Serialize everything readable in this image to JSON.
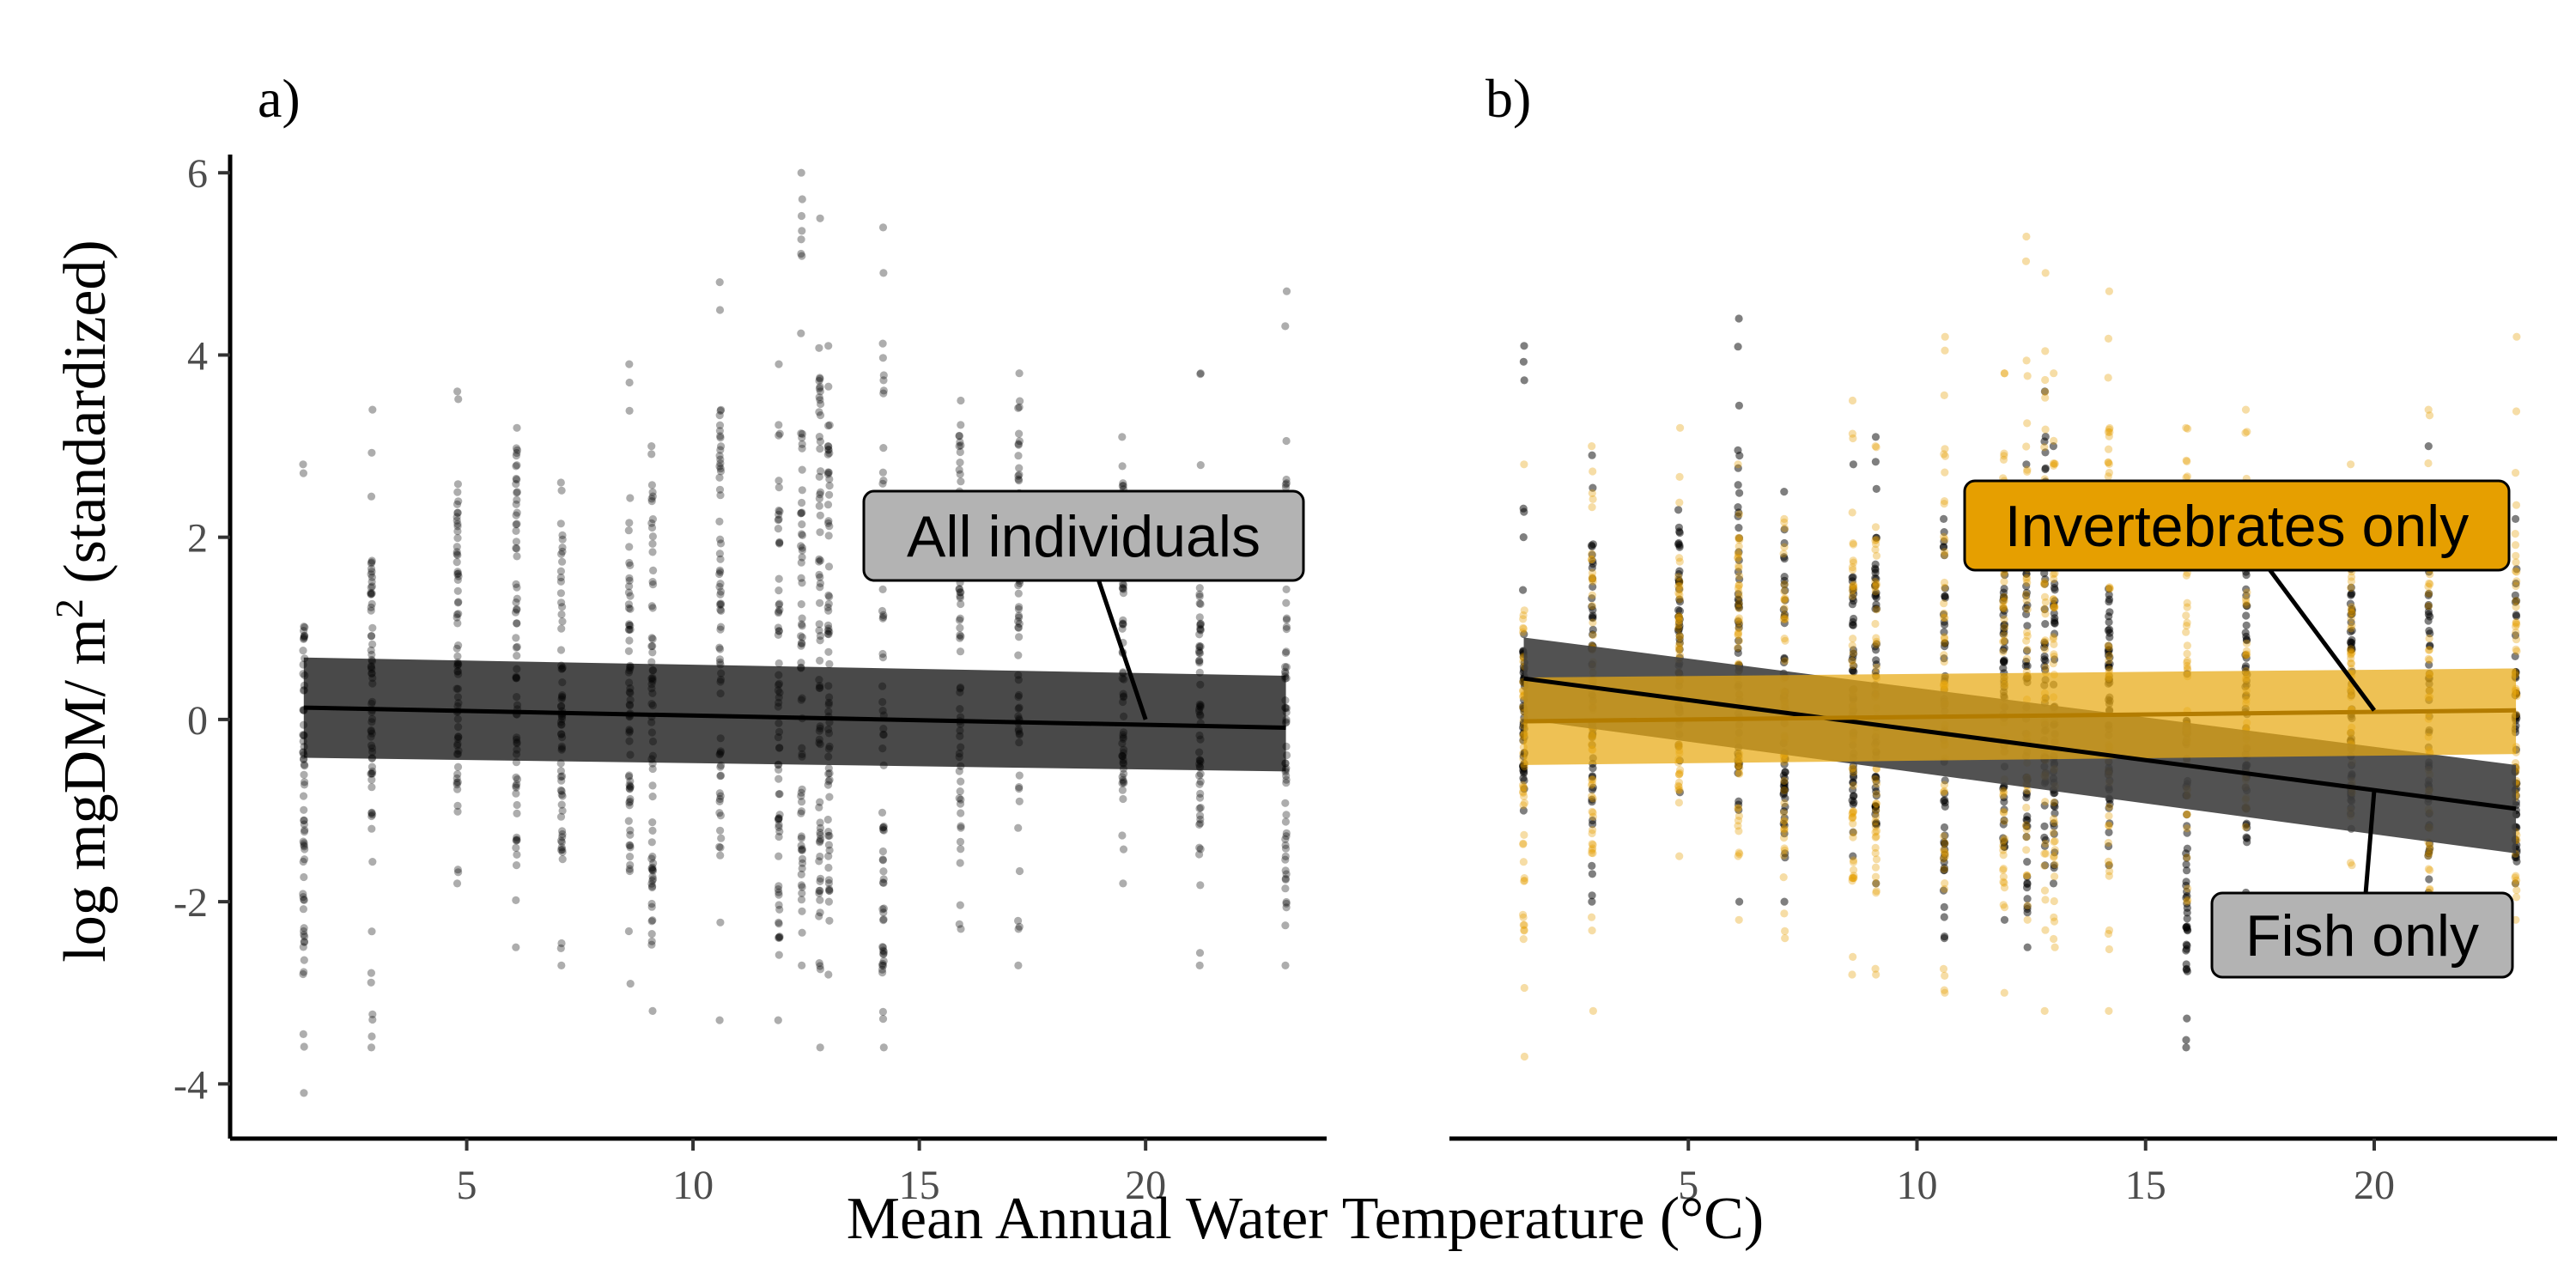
{
  "colors": {
    "fish": "#000000",
    "invertebrates": "#E69F00",
    "band_all": "#3f3f3f",
    "band_fish": "#3f3f3f",
    "band_invert": "#E8A912",
    "label_gray": "#b3b3b3",
    "label_orange": "#E69F00"
  },
  "figure": {
    "xlabel": "Mean Annual Water Temperature (°C)",
    "ylabel_main": "log mgDM/ m",
    "ylabel_sup": "2",
    "ylabel_tail": " (standardized)"
  },
  "chart_data": [
    {
      "panel": "a)",
      "type": "scatter",
      "xlabel": "Mean Annual Water Temperature (°C)",
      "ylabel": "log mgDM/ m2 (standardized)",
      "xlim": [
        0,
        24
      ],
      "ylim": [
        -4.6,
        6.2
      ],
      "xticks": [
        5,
        10,
        15,
        20
      ],
      "yticks": [
        -4,
        -2,
        0,
        2,
        4,
        6
      ],
      "grid": false,
      "sites_x": [
        1.4,
        2.9,
        4.8,
        6.1,
        7.1,
        8.6,
        9.1,
        10.6,
        11.9,
        12.4,
        12.8,
        13.0,
        14.2,
        15.9,
        17.2,
        19.5,
        21.2,
        23.1
      ],
      "site_ranges": [
        {
          "x": 1.4,
          "min": -4.1,
          "max": 2.8,
          "dense": [
            -2.8,
            1.2
          ]
        },
        {
          "x": 2.9,
          "min": -3.6,
          "max": 3.4,
          "dense": [
            -1.2,
            1.9
          ]
        },
        {
          "x": 4.8,
          "min": -1.8,
          "max": 3.6,
          "dense": [
            -0.8,
            2.3
          ]
        },
        {
          "x": 6.1,
          "min": -2.5,
          "max": 3.2,
          "dense": [
            -1.6,
            3.0
          ]
        },
        {
          "x": 7.1,
          "min": -2.7,
          "max": 2.6,
          "dense": [
            -1.5,
            2.2
          ]
        },
        {
          "x": 8.6,
          "min": -2.9,
          "max": 3.9,
          "dense": [
            -1.8,
            2.0
          ]
        },
        {
          "x": 9.1,
          "min": -3.2,
          "max": 3.0,
          "dense": [
            -2.5,
            2.5
          ]
        },
        {
          "x": 10.6,
          "min": -3.3,
          "max": 4.8,
          "dense": [
            -1.5,
            3.4
          ]
        },
        {
          "x": 11.9,
          "min": -3.3,
          "max": 3.9,
          "dense": [
            -2.5,
            3.3
          ]
        },
        {
          "x": 12.4,
          "min": -2.7,
          "max": 6.0,
          "dense": [
            -2.3,
            3.3
          ]
        },
        {
          "x": 12.8,
          "min": -3.6,
          "max": 5.5,
          "dense": [
            -2.2,
            4.1
          ]
        },
        {
          "x": 13.0,
          "min": -2.8,
          "max": 4.1,
          "dense": [
            -2.0,
            3.6
          ]
        },
        {
          "x": 14.2,
          "min": -3.6,
          "max": 5.4,
          "dense": [
            -2.8,
            4.2
          ]
        },
        {
          "x": 15.9,
          "min": -2.3,
          "max": 3.5,
          "dense": [
            -1.6,
            3.4
          ]
        },
        {
          "x": 17.2,
          "min": -2.7,
          "max": 3.8,
          "dense": [
            -1.0,
            3.6
          ]
        },
        {
          "x": 19.5,
          "min": -1.8,
          "max": 3.1,
          "dense": [
            -1.0,
            2.6
          ]
        },
        {
          "x": 21.2,
          "min": -2.7,
          "max": 3.8,
          "dense": [
            -2.0,
            2.1
          ]
        },
        {
          "x": 23.1,
          "min": -2.7,
          "max": 4.7,
          "dense": [
            -2.3,
            2.8
          ]
        }
      ],
      "series": [
        {
          "name": "All individuals",
          "color": "#000000",
          "fit_x": [
            1.4,
            23.1
          ],
          "fit_y": [
            0.13,
            -0.09
          ],
          "ci_lower": [
            -0.42,
            -0.57
          ],
          "ci_upper": [
            0.68,
            0.48
          ]
        }
      ],
      "annotations": [
        {
          "text": "All individuals",
          "style": "gray",
          "points_to": {
            "x": 20.0,
            "y": 0.0
          }
        }
      ]
    },
    {
      "panel": "b)",
      "type": "scatter",
      "xlabel": "Mean Annual Water Temperature (°C)",
      "ylabel": "log mgDM/ m2 (standardized)",
      "xlim": [
        0,
        24
      ],
      "ylim": [
        -4.6,
        6.2
      ],
      "xticks": [
        5,
        10,
        15,
        20
      ],
      "yticks": [
        -4,
        -2,
        0,
        2,
        4,
        6
      ],
      "grid": false,
      "sites_x": [
        1.4,
        2.9,
        4.8,
        6.1,
        7.1,
        8.6,
        9.1,
        10.6,
        11.9,
        12.4,
        12.8,
        13.0,
        14.2,
        15.9,
        17.2,
        19.5,
        21.2,
        23.1
      ],
      "site_ranges_fish": [
        {
          "x": 1.4,
          "min": -1.0,
          "max": 4.1,
          "dense": [
            -0.6,
            0.8
          ]
        },
        {
          "x": 2.9,
          "min": -2.0,
          "max": 2.9,
          "dense": [
            -1.2,
            2.0
          ]
        },
        {
          "x": 4.8,
          "min": -0.8,
          "max": 2.3,
          "dense": [
            -0.5,
            2.0
          ]
        },
        {
          "x": 6.1,
          "min": -2.0,
          "max": 4.4,
          "dense": [
            -1.0,
            3.0
          ]
        },
        {
          "x": 7.1,
          "min": -2.0,
          "max": 2.5,
          "dense": [
            -1.8,
            1.8
          ]
        },
        {
          "x": 8.6,
          "min": -1.5,
          "max": 2.8,
          "dense": [
            -1.0,
            1.6
          ]
        },
        {
          "x": 9.1,
          "min": -1.8,
          "max": 3.1,
          "dense": [
            -1.2,
            2.0
          ]
        },
        {
          "x": 10.6,
          "min": -2.4,
          "max": 2.2,
          "dense": [
            -1.9,
            2.1
          ]
        },
        {
          "x": 11.9,
          "min": -2.2,
          "max": 2.5,
          "dense": [
            -1.5,
            2.0
          ]
        },
        {
          "x": 12.4,
          "min": -2.5,
          "max": 2.8,
          "dense": [
            -2.2,
            2.3
          ]
        },
        {
          "x": 12.8,
          "min": -1.6,
          "max": 3.6,
          "dense": [
            -1.4,
            3.1
          ]
        },
        {
          "x": 13.0,
          "min": -1.8,
          "max": 3.0,
          "dense": [
            -1.4,
            2.6
          ]
        },
        {
          "x": 14.2,
          "min": -1.6,
          "max": 2.0,
          "dense": [
            -1.0,
            1.5
          ]
        },
        {
          "x": 15.9,
          "min": -3.6,
          "max": 0.5,
          "dense": [
            -2.8,
            0.2
          ]
        },
        {
          "x": 17.2,
          "min": -1.9,
          "max": 2.4,
          "dense": [
            -1.5,
            2.0
          ]
        },
        {
          "x": 19.5,
          "min": -1.2,
          "max": 1.8,
          "dense": [
            -1.0,
            1.5
          ]
        },
        {
          "x": 21.2,
          "min": -1.9,
          "max": 3.0,
          "dense": [
            -1.5,
            2.1
          ]
        },
        {
          "x": 23.1,
          "min": -1.8,
          "max": 2.2,
          "dense": [
            -1.6,
            1.5
          ]
        }
      ],
      "site_ranges_invert": [
        {
          "x": 1.4,
          "min": -3.7,
          "max": 2.8,
          "dense": [
            -2.8,
            1.2
          ]
        },
        {
          "x": 2.9,
          "min": -3.2,
          "max": 3.0,
          "dense": [
            -1.5,
            2.0
          ]
        },
        {
          "x": 4.8,
          "min": -1.5,
          "max": 3.2,
          "dense": [
            -0.8,
            2.0
          ]
        },
        {
          "x": 6.1,
          "min": -2.2,
          "max": 2.8,
          "dense": [
            -1.5,
            2.0
          ]
        },
        {
          "x": 7.1,
          "min": -2.4,
          "max": 2.2,
          "dense": [
            -1.5,
            1.6
          ]
        },
        {
          "x": 8.6,
          "min": -2.8,
          "max": 3.5,
          "dense": [
            -1.8,
            2.0
          ]
        },
        {
          "x": 9.1,
          "min": -2.8,
          "max": 3.0,
          "dense": [
            -2.0,
            2.2
          ]
        },
        {
          "x": 10.6,
          "min": -3.0,
          "max": 4.2,
          "dense": [
            -1.8,
            3.0
          ]
        },
        {
          "x": 11.9,
          "min": -3.0,
          "max": 3.8,
          "dense": [
            -2.2,
            3.0
          ]
        },
        {
          "x": 12.4,
          "min": -2.2,
          "max": 5.3,
          "dense": [
            -1.8,
            3.0
          ]
        },
        {
          "x": 12.8,
          "min": -3.2,
          "max": 4.9,
          "dense": [
            -2.0,
            3.6
          ]
        },
        {
          "x": 13.0,
          "min": -2.5,
          "max": 3.8,
          "dense": [
            -1.8,
            3.3
          ]
        },
        {
          "x": 14.2,
          "min": -3.2,
          "max": 4.7,
          "dense": [
            -2.5,
            3.8
          ]
        },
        {
          "x": 15.9,
          "min": -2.0,
          "max": 3.2,
          "dense": [
            -1.5,
            3.0
          ]
        },
        {
          "x": 17.2,
          "min": -2.4,
          "max": 3.4,
          "dense": [
            -1.0,
            3.2
          ]
        },
        {
          "x": 19.5,
          "min": -1.6,
          "max": 2.8,
          "dense": [
            -1.0,
            2.4
          ]
        },
        {
          "x": 21.2,
          "min": -2.4,
          "max": 3.4,
          "dense": [
            -1.8,
            2.6
          ]
        },
        {
          "x": 23.1,
          "min": -2.2,
          "max": 4.2,
          "dense": [
            -2.0,
            2.4
          ]
        }
      ],
      "series": [
        {
          "name": "Fish only",
          "color": "#000000",
          "fit_x": [
            1.4,
            23.1
          ],
          "fit_y": [
            0.45,
            -0.98
          ],
          "ci_lower": [
            0.0,
            -1.47
          ],
          "ci_upper": [
            0.9,
            -0.5
          ]
        },
        {
          "name": "Invertebrates only",
          "color": "#E69F00",
          "fit_x": [
            1.4,
            23.1
          ],
          "fit_y": [
            -0.02,
            0.1
          ],
          "ci_lower": [
            -0.5,
            -0.38
          ],
          "ci_upper": [
            0.46,
            0.56
          ]
        }
      ],
      "annotations": [
        {
          "text": "Invertebrates only",
          "style": "orange",
          "points_to": {
            "x": 20.0,
            "y": 0.1
          }
        },
        {
          "text": "Fish only",
          "style": "gray",
          "points_to": {
            "x": 20.0,
            "y": -0.78
          }
        }
      ]
    }
  ]
}
